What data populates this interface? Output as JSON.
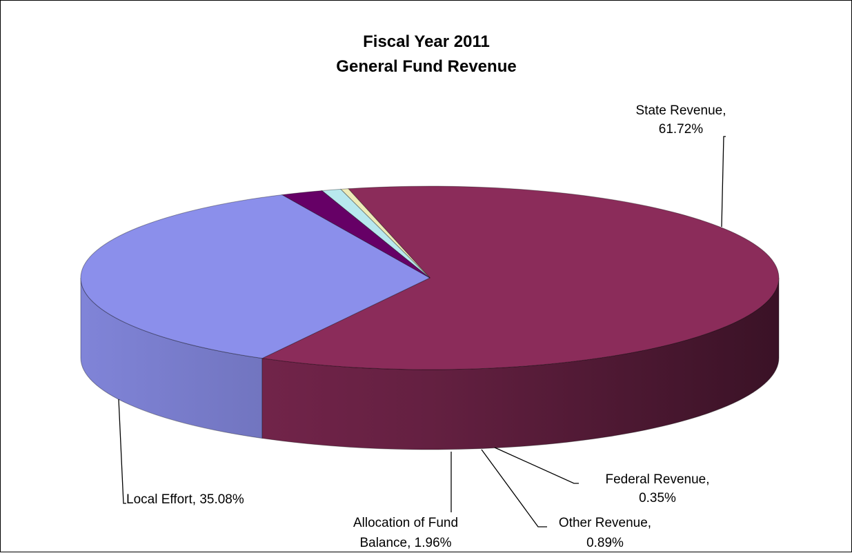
{
  "chart_data": {
    "type": "pie",
    "title": "Fiscal Year 2011",
    "subtitle": "General Fund Revenue",
    "slices": [
      {
        "name": "State Revenue",
        "value": 61.72,
        "color": "#8B2C5A",
        "label_line1": "State Revenue,",
        "label_line2": "61.72%"
      },
      {
        "name": "Local Effort",
        "value": 35.08,
        "color": "#8B8FEB",
        "label_line1": "Local Effort, 35.08%",
        "label_line2": ""
      },
      {
        "name": "Allocation of Fund Balance",
        "value": 1.96,
        "color": "#660066",
        "label_line1": "Allocation of Fund",
        "label_line2": "Balance, 1.96%"
      },
      {
        "name": "Other Revenue",
        "value": 0.89,
        "color": "#B8E8EE",
        "label_line1": "Other Revenue,",
        "label_line2": "0.89%"
      },
      {
        "name": "Federal Revenue",
        "value": 0.35,
        "color": "#EEEBB8",
        "label_line1": "Federal Revenue,",
        "label_line2": "0.35%"
      }
    ]
  }
}
